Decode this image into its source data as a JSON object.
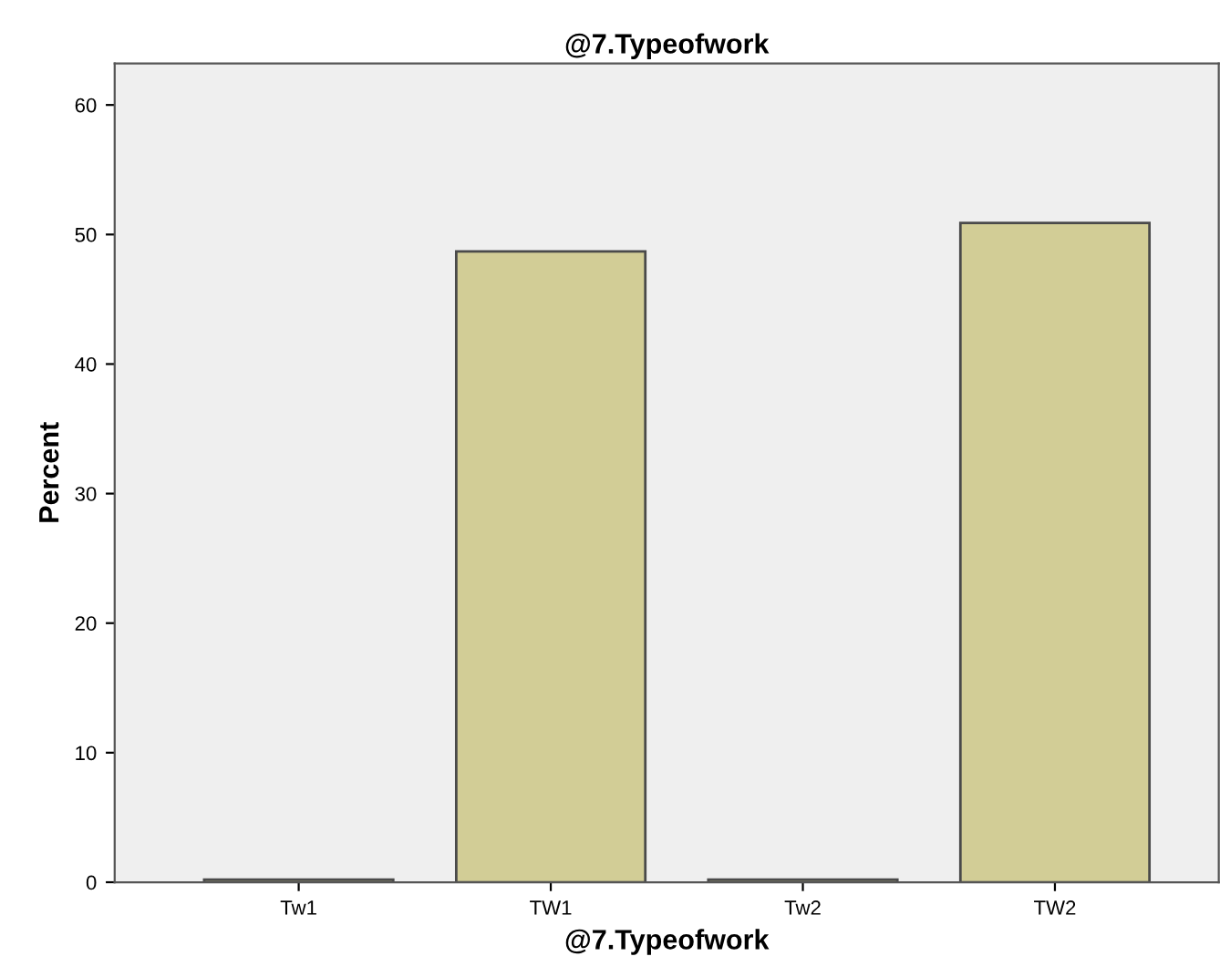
{
  "chart_data": {
    "type": "bar",
    "title": "@7.Typeofwork",
    "xlabel": "@7.Typeofwork",
    "ylabel": "Percent",
    "categories": [
      "Tw1",
      "TW1",
      "Tw2",
      "TW2"
    ],
    "values": [
      0.2,
      48.7,
      0.2,
      50.9
    ],
    "color": "#d2cd96",
    "ylim": [
      0,
      63.2
    ],
    "yticks": [
      0,
      10,
      20,
      30,
      40,
      50,
      60
    ],
    "grid": false,
    "legend": false
  }
}
